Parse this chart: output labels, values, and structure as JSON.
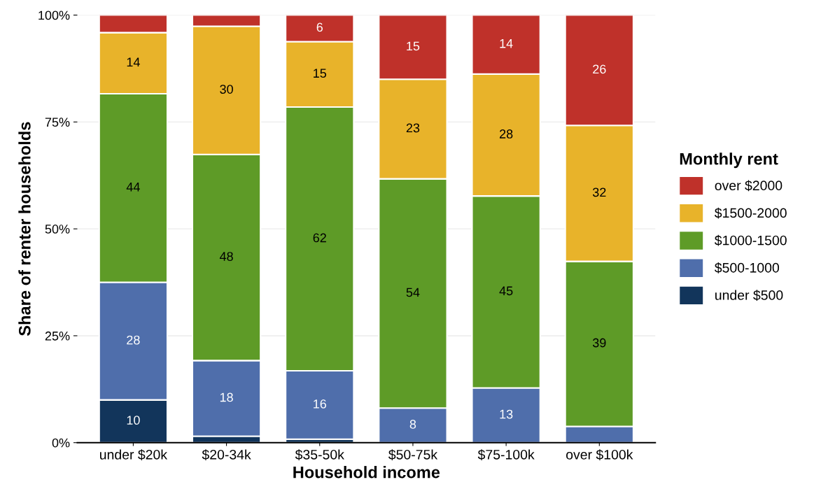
{
  "chart_data": {
    "type": "bar",
    "stacked": true,
    "xlabel": "Household income",
    "ylabel": "Share of renter households",
    "legend_title": "Monthly rent",
    "legend": "right",
    "grid": "y",
    "categories": [
      "under $20k",
      "$20-34k",
      "$35-50k",
      "$50-75k",
      "$75-100k",
      "over $100k"
    ],
    "ylim": [
      0,
      100
    ],
    "yticks": [
      {
        "value": 0,
        "label": "0%"
      },
      {
        "value": 25,
        "label": "25%"
      },
      {
        "value": 50,
        "label": "50%"
      },
      {
        "value": 75,
        "label": "75%"
      },
      {
        "value": 100,
        "label": "100%"
      }
    ],
    "series": [
      {
        "name": "under $500",
        "color": "#12355b",
        "values": [
          10,
          1.5,
          0.8,
          0,
          0,
          0
        ],
        "value_labels": [
          "10",
          null,
          null,
          null,
          null,
          null
        ]
      },
      {
        "name": "$500-1000",
        "color": "#4f6eab",
        "values": [
          27.5,
          17.7,
          16,
          8.1,
          12.8,
          3.8
        ],
        "value_labels": [
          "28",
          "18",
          "16",
          "8",
          "13",
          null
        ]
      },
      {
        "name": "$1000-1500",
        "color": "#5e9b27",
        "values": [
          44.1,
          48.2,
          61.7,
          53.6,
          44.9,
          38.6
        ],
        "value_labels": [
          "44",
          "48",
          "62",
          "54",
          "45",
          "39"
        ]
      },
      {
        "name": "$1500-2000",
        "color": "#e8b32a",
        "values": [
          14.3,
          30,
          15.3,
          23.3,
          28.5,
          31.8
        ],
        "value_labels": [
          "14",
          "30",
          "15",
          "23",
          "28",
          "32"
        ]
      },
      {
        "name": "over $2000",
        "color": "#bf312a",
        "values": [
          4.1,
          2.6,
          6.2,
          15,
          13.8,
          25.8
        ],
        "value_labels": [
          null,
          null,
          "6",
          "15",
          "14",
          "26"
        ]
      }
    ]
  }
}
